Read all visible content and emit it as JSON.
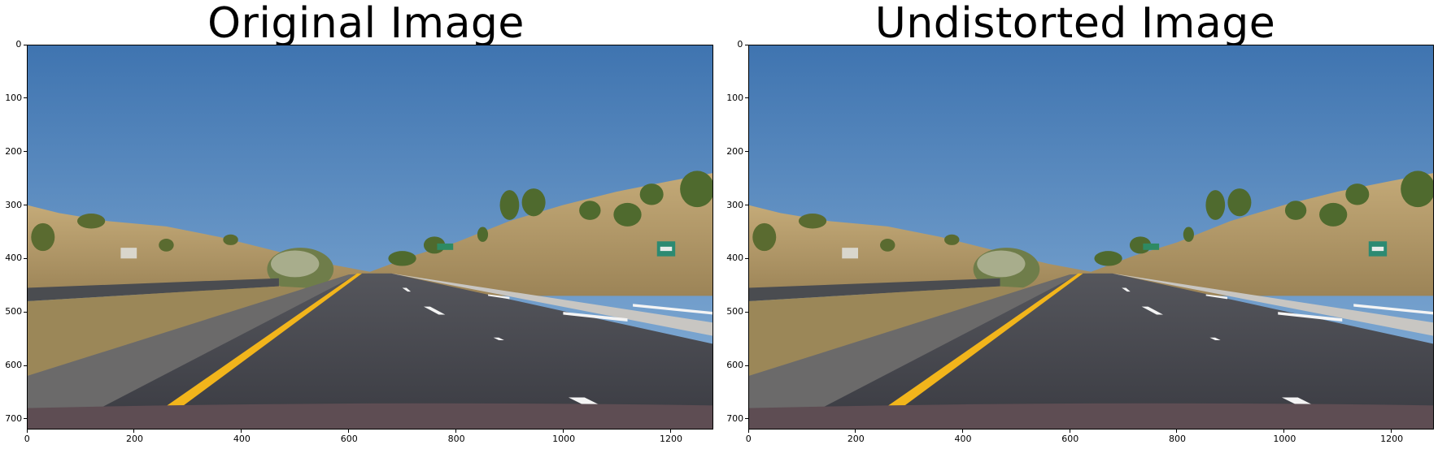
{
  "panels": [
    {
      "title": "Original Image",
      "x_ticks": [
        "0",
        "200",
        "400",
        "600",
        "800",
        "1000",
        "1200"
      ],
      "y_ticks": [
        "0",
        "100",
        "200",
        "300",
        "400",
        "500",
        "600",
        "700"
      ]
    },
    {
      "title": "Undistorted Image",
      "x_ticks": [
        "0",
        "200",
        "400",
        "600",
        "800",
        "1000",
        "1200"
      ],
      "y_ticks": [
        "0",
        "100",
        "200",
        "300",
        "400",
        "500",
        "600",
        "700"
      ]
    }
  ],
  "image_extent": {
    "x": [
      0,
      1280
    ],
    "y": [
      720,
      0
    ]
  },
  "colors": {
    "sky_top": "#3f74b0",
    "sky_bottom": "#8bb3d9",
    "hill": "#b59c6a",
    "road": "#3a3b42",
    "yellow_line": "#f2b51b",
    "hood": "#5e4d53"
  }
}
